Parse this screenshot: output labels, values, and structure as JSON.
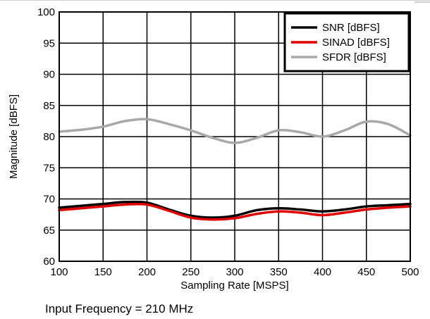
{
  "chart_data": {
    "type": "line",
    "xlabel": "Sampling Rate [MSPS]",
    "ylabel": "Magnitude [dBFS]",
    "xlim": [
      100,
      500
    ],
    "ylim": [
      60,
      100
    ],
    "xticks": [
      100,
      150,
      200,
      250,
      300,
      350,
      400,
      450,
      500
    ],
    "yticks": [
      60,
      65,
      70,
      75,
      80,
      85,
      90,
      95,
      100
    ],
    "grid": true,
    "legend_position": "top-right",
    "series": [
      {
        "name": "SNR [dBFS]",
        "color": "#000000",
        "x": [
          100,
          125,
          150,
          175,
          200,
          225,
          250,
          275,
          300,
          325,
          350,
          375,
          400,
          425,
          450,
          475,
          500
        ],
        "y": [
          68.6,
          68.9,
          69.2,
          69.5,
          69.4,
          68.3,
          67.3,
          67.0,
          67.3,
          68.2,
          68.5,
          68.3,
          68.0,
          68.3,
          68.8,
          69.0,
          69.2
        ]
      },
      {
        "name": "SINAD [dBFS]",
        "color": "#e00000",
        "x": [
          100,
          125,
          150,
          175,
          200,
          225,
          250,
          275,
          300,
          325,
          350,
          375,
          400,
          425,
          450,
          475,
          500
        ],
        "y": [
          68.2,
          68.5,
          68.8,
          69.1,
          69.1,
          68.1,
          67.0,
          66.7,
          66.9,
          67.6,
          68.0,
          67.8,
          67.4,
          67.8,
          68.3,
          68.6,
          68.8
        ]
      },
      {
        "name": "SFDR [dBFS]",
        "color": "#a8a8a8",
        "x": [
          100,
          125,
          150,
          175,
          200,
          225,
          250,
          275,
          300,
          325,
          350,
          375,
          400,
          425,
          450,
          475,
          500
        ],
        "y": [
          80.8,
          81.1,
          81.6,
          82.5,
          82.8,
          82.0,
          81.0,
          79.8,
          79.0,
          79.8,
          81.0,
          80.7,
          80.0,
          81.0,
          82.4,
          82.0,
          80.2
        ]
      }
    ]
  },
  "footnote": "Input Frequency = 210 MHz"
}
